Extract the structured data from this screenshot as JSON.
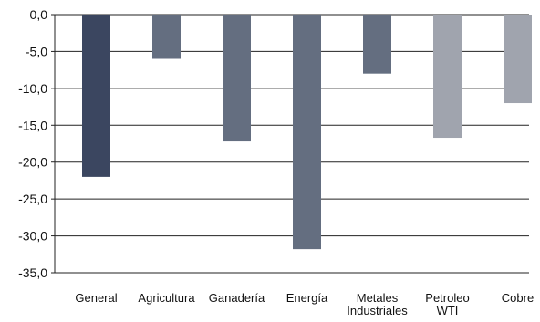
{
  "chart_data": {
    "type": "bar",
    "title": "",
    "xlabel": "",
    "ylabel": "",
    "ylim": [
      -35,
      0
    ],
    "ytick_step": 5,
    "ytick_labels": [
      "0,0",
      "-5,0",
      "-10,0",
      "-15,0",
      "-20,0",
      "-25,0",
      "-30,0",
      "-35,0"
    ],
    "grid": true,
    "legend": "none",
    "categories": [
      [
        "General"
      ],
      [
        "Agricultura"
      ],
      [
        "Ganadería"
      ],
      [
        "Energía"
      ],
      [
        "Metales",
        "Industriales"
      ],
      [
        "Petroleo",
        "WTI"
      ],
      [
        "Cobre"
      ]
    ],
    "values": [
      -22.0,
      -6.0,
      -17.2,
      -31.8,
      -8.0,
      -16.7,
      -12.0
    ],
    "colors": [
      "#3b4660",
      "#646e80",
      "#646e80",
      "#646e80",
      "#646e80",
      "#a0a4ae",
      "#a0a4ae"
    ]
  }
}
